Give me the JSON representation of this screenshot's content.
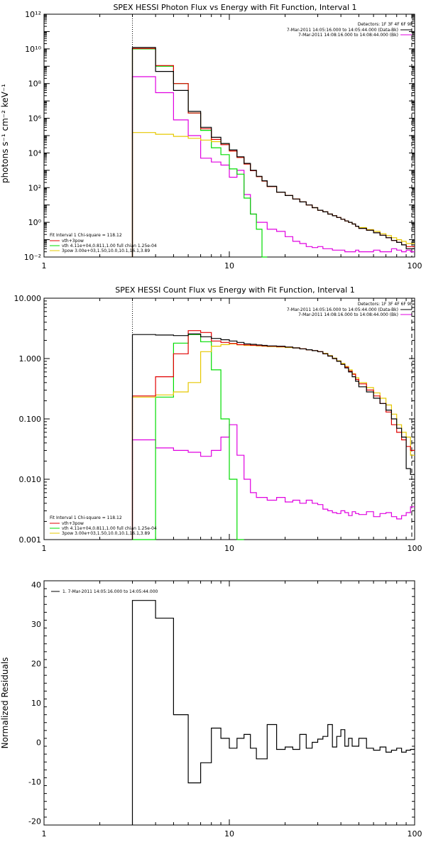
{
  "chart_data": [
    {
      "type": "line",
      "title": "SPEX HESSI Photon Flux vs Energy with Fit Function, Interval 1",
      "xlabel": "",
      "ylabel": "photons s⁻¹ cm⁻² keV⁻¹",
      "xscale": "log",
      "yscale": "log",
      "xlim": [
        1,
        100
      ],
      "ylim": [
        0.01,
        1000000000000
      ],
      "x_ticks": [
        1,
        10,
        100
      ],
      "x_tick_labels": [
        "1",
        "10",
        "100"
      ],
      "y_ticks": [
        0.01,
        1,
        100,
        10000,
        1000000,
        100000000,
        10000000000,
        1000000000000
      ],
      "y_tick_labels": [
        "10⁻²",
        "10⁰",
        "10²",
        "10⁴",
        "10⁶",
        "10⁸",
        "10¹⁰",
        "10¹²"
      ],
      "header": {
        "detectors": "Detectors: 1F 3F 4F 6F 9F",
        "line1": "7-Mar-2011 14:05:16.000 to 14:05:44.000 (Data-Bk)",
        "line2": "7-Mar-2011 14:08:16.000 to 14:08:44.000 (Bk)"
      },
      "legend_position": "bottom-left",
      "legend": {
        "fit_line": "Fit Interval 1    Chi-square = 118.12",
        "items": [
          {
            "label": "vth+3pow",
            "color": "#e00000"
          },
          {
            "label": "vth 4.11e+04,0.811,1.00  full chian 1.25e-04",
            "color": "#00dd00"
          },
          {
            "label": "3pow  3.00e+03,1.50,10.0,10.1,16.1,3.89",
            "color": "#e6c800"
          }
        ]
      },
      "colors": {
        "data": "#000000",
        "background": "#e000e0",
        "total": "#e00000",
        "vth": "#00dd00",
        "pow": "#e6c800"
      },
      "marker_x": 3,
      "x_edges": [
        3,
        4,
        5,
        6,
        7,
        8,
        9,
        10,
        11,
        12,
        13,
        14,
        15,
        16,
        18,
        20,
        22,
        24,
        26,
        28,
        30,
        32,
        34,
        36,
        38,
        40,
        42,
        44,
        46,
        48,
        50,
        55,
        60,
        65,
        70,
        75,
        80,
        85,
        90,
        95,
        100
      ],
      "series": [
        {
          "key": "data",
          "values": [
            12000000000,
            500000000,
            40000000,
            2500000,
            300000,
            80000,
            35000,
            15000,
            6000,
            2500,
            1000,
            450,
            250,
            120,
            55,
            35,
            22,
            15,
            10,
            7,
            5,
            4,
            3,
            2.4,
            1.9,
            1.5,
            1.2,
            1.0,
            0.8,
            0.6,
            0.45,
            0.35,
            0.25,
            0.18,
            0.13,
            0.09,
            0.07,
            0.05,
            0.03,
            0.03
          ]
        },
        {
          "key": "background",
          "values": [
            250000000,
            30000000,
            800000,
            100000,
            5000,
            3000,
            2000,
            400,
            1000,
            40,
            3,
            1,
            1,
            0.4,
            0.3,
            0.15,
            0.08,
            0.06,
            0.04,
            0.035,
            0.04,
            0.03,
            0.03,
            0.025,
            0.025,
            0.025,
            0.02,
            0.02,
            0.02,
            0.025,
            0.02,
            0.02,
            0.025,
            0.02,
            0.02,
            0.03,
            0.025,
            0.02,
            0.025,
            0.02
          ]
        },
        {
          "key": "total",
          "values": [
            10500000000,
            1100000000,
            100000000,
            2000000,
            250000,
            60000,
            30000,
            13000,
            5500,
            2300,
            950,
            430,
            240,
            115,
            55,
            35,
            22,
            15,
            10,
            7,
            5,
            4,
            3,
            2.4,
            1.9,
            1.5,
            1.2,
            1.0,
            0.8,
            0.6,
            0.45,
            0.35,
            0.25,
            0.18,
            0.13,
            0.09,
            0.07,
            0.05,
            0.04,
            0.04
          ]
        },
        {
          "key": "vth",
          "values": [
            10000000000,
            1000000000,
            100000000,
            2000000,
            200000,
            20000,
            8000,
            1200,
            600,
            25,
            3,
            0.4,
            0.01
          ]
        },
        {
          "key": "pow",
          "values": [
            150000,
            120000,
            90000,
            70000,
            55000,
            45000,
            35000,
            13000,
            5500,
            2300,
            950,
            430,
            240,
            115,
            55,
            35,
            22,
            15,
            10,
            7,
            5,
            4,
            3,
            2.4,
            1.9,
            1.5,
            1.2,
            1.0,
            0.8,
            0.6,
            0.5,
            0.38,
            0.3,
            0.22,
            0.17,
            0.13,
            0.1,
            0.08,
            0.06,
            0.06
          ]
        }
      ]
    },
    {
      "type": "line",
      "title": "SPEX HESSI Count Flux vs Energy with Fit Function, Interval 1",
      "xlabel": "",
      "ylabel": "",
      "xscale": "log",
      "yscale": "log",
      "xlim": [
        1,
        100
      ],
      "ylim": [
        0.001,
        10
      ],
      "x_ticks": [
        1,
        10,
        100
      ],
      "x_tick_labels": [
        "1",
        "10",
        "100"
      ],
      "y_ticks": [
        0.001,
        0.01,
        0.1,
        1,
        10
      ],
      "y_tick_labels": [
        "0.001",
        "0.010",
        "0.100",
        "1.000",
        "10.000"
      ],
      "header": {
        "detectors": "Detectors: 1F 3F 4F 6F 9F",
        "line1": "7-Mar-2011 14:05:16.000 to 14:05:44.000 (Data-Bk)",
        "line2": "7-Mar-2011 14:08:16.000 to 14:08:44.000 (Bk)"
      },
      "legend_position": "bottom-left",
      "legend": {
        "fit_line": "Fit Interval 1    Chi-square = 118.12",
        "items": [
          {
            "label": "vth+3pow",
            "color": "#e00000"
          },
          {
            "label": "vth 4.11e+04,0.811,1.00  full chian 1.25e-04",
            "color": "#00dd00"
          },
          {
            "label": "3pow  3.00e+03,1.50,10.0,10.1,16.1,3.89",
            "color": "#e6c800"
          }
        ]
      },
      "colors": {
        "data": "#000000",
        "background": "#e000e0",
        "total": "#e00000",
        "vth": "#00dd00",
        "pow": "#e6c800"
      },
      "marker_x": 3,
      "x_edges": [
        3,
        4,
        5,
        6,
        7,
        8,
        9,
        10,
        11,
        12,
        13,
        14,
        15,
        16,
        18,
        20,
        22,
        24,
        26,
        28,
        30,
        32,
        34,
        36,
        38,
        40,
        42,
        44,
        46,
        48,
        50,
        55,
        60,
        65,
        70,
        75,
        80,
        85,
        90,
        95,
        100
      ],
      "series": [
        {
          "key": "data",
          "values": [
            2.5,
            2.45,
            2.4,
            2.55,
            2.3,
            2.15,
            2.05,
            1.95,
            1.85,
            1.75,
            1.72,
            1.68,
            1.65,
            1.62,
            1.6,
            1.55,
            1.5,
            1.45,
            1.4,
            1.35,
            1.3,
            1.2,
            1.1,
            1.0,
            0.9,
            0.8,
            0.7,
            0.6,
            0.5,
            0.42,
            0.34,
            0.28,
            0.22,
            0.18,
            0.14,
            0.1,
            0.07,
            0.05,
            0.015,
            0.012
          ]
        },
        {
          "key": "background",
          "values": [
            0.045,
            0.033,
            0.03,
            0.028,
            0.024,
            0.03,
            0.05,
            0.08,
            0.025,
            0.01,
            0.006,
            0.005,
            0.005,
            0.0045,
            0.005,
            0.0042,
            0.0045,
            0.004,
            0.0045,
            0.004,
            0.0038,
            0.0032,
            0.003,
            0.0028,
            0.0027,
            0.003,
            0.0028,
            0.0025,
            0.0029,
            0.0027,
            0.0026,
            0.0029,
            0.0024,
            0.0027,
            0.0028,
            0.0024,
            0.0022,
            0.0025,
            0.0028,
            0.0035
          ]
        },
        {
          "key": "total",
          "values": [
            0.24,
            0.5,
            1.2,
            2.9,
            2.7,
            1.95,
            1.85,
            1.78,
            1.7,
            1.68,
            1.66,
            1.64,
            1.62,
            1.6,
            1.58,
            1.55,
            1.5,
            1.45,
            1.4,
            1.35,
            1.3,
            1.2,
            1.1,
            1.0,
            0.9,
            0.8,
            0.72,
            0.62,
            0.55,
            0.45,
            0.38,
            0.3,
            0.24,
            0.18,
            0.13,
            0.08,
            0.06,
            0.045,
            0.035,
            0.03
          ]
        },
        {
          "key": "vth",
          "values": [
            0.001,
            0.23,
            1.8,
            2.5,
            1.9,
            0.65,
            0.1,
            0.01,
            0.001
          ]
        },
        {
          "key": "pow",
          "values": [
            0.23,
            0.25,
            0.28,
            0.4,
            1.3,
            1.6,
            1.7,
            1.75,
            1.68,
            1.65,
            1.64,
            1.62,
            1.6,
            1.58,
            1.55,
            1.52,
            1.5,
            1.45,
            1.4,
            1.35,
            1.3,
            1.22,
            1.12,
            1.02,
            0.92,
            0.83,
            0.74,
            0.65,
            0.56,
            0.48,
            0.4,
            0.33,
            0.27,
            0.22,
            0.17,
            0.12,
            0.08,
            0.06,
            0.05,
            0.025
          ]
        }
      ]
    },
    {
      "type": "line",
      "title": "",
      "xlabel": "",
      "ylabel": "Normalized Residuals",
      "xscale": "log",
      "yscale": "linear",
      "xlim": [
        1,
        100
      ],
      "ylim": [
        -21,
        41
      ],
      "x_ticks": [
        1,
        10,
        100
      ],
      "x_tick_labels": [
        "1",
        "10",
        "100"
      ],
      "y_ticks": [
        -20,
        -10,
        0,
        10,
        20,
        30,
        40
      ],
      "y_tick_labels": [
        "-20",
        "-10",
        "0",
        "10",
        "20",
        "30",
        "40"
      ],
      "legend_position": "top-left",
      "legend": {
        "fit_line": "",
        "items": [
          {
            "label": "1.  7-Mar-2011 14:05:16.000 to 14:05:44.000",
            "color": "#000000"
          }
        ]
      },
      "colors": {
        "residual": "#000000"
      },
      "x_edges": [
        3,
        4,
        5,
        6,
        7,
        8,
        9,
        10,
        11,
        12,
        13,
        14,
        15,
        16,
        18,
        20,
        22,
        24,
        26,
        28,
        30,
        32,
        34,
        36,
        38,
        40,
        42,
        44,
        46,
        48,
        50,
        55,
        60,
        65,
        70,
        75,
        80,
        85,
        90,
        95,
        100
      ],
      "series": [
        {
          "key": "residual",
          "values": [
            36,
            31.5,
            7,
            -10.3,
            -5.2,
            3.6,
            1,
            -1.5,
            1,
            2,
            -1.5,
            -4.2,
            -4.2,
            4.5,
            -1.8,
            -1.2,
            -1.8,
            2,
            -1.5,
            0,
            0.8,
            1.5,
            4.5,
            -1.2,
            1.5,
            3.2,
            -1,
            1,
            -1,
            -1,
            1,
            -1.5,
            -2,
            -1.2,
            -2.5,
            -2,
            -1.5,
            -2.5,
            -2,
            -1.8
          ]
        }
      ]
    }
  ]
}
